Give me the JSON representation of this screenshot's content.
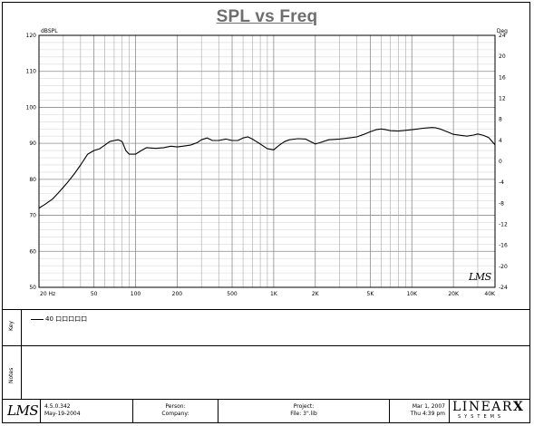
{
  "chart_data": {
    "type": "line",
    "title": "SPL vs Freq",
    "ylabel": "dBSPL",
    "y2label": "Deg",
    "xscale": "log",
    "xlim": [
      20,
      40000
    ],
    "ylim": [
      50,
      120
    ],
    "y2lim": [
      -24,
      24
    ],
    "yticks": [
      50,
      60,
      70,
      80,
      90,
      100,
      110,
      120
    ],
    "y2ticks": [
      -24,
      -20,
      -16,
      -12,
      -8,
      -4,
      0,
      4,
      8,
      12,
      16,
      20,
      24
    ],
    "xticks": [
      {
        "value": 20,
        "label": "20  Hz"
      },
      {
        "value": 50,
        "label": "50"
      },
      {
        "value": 100,
        "label": "100"
      },
      {
        "value": 200,
        "label": "200"
      },
      {
        "value": 500,
        "label": "500"
      },
      {
        "value": 1000,
        "label": "1K"
      },
      {
        "value": 2000,
        "label": "2K"
      },
      {
        "value": 5000,
        "label": "5K"
      },
      {
        "value": 10000,
        "label": "10K"
      },
      {
        "value": 20000,
        "label": "20K"
      },
      {
        "value": 40000,
        "label": "40K"
      }
    ],
    "grid": true,
    "series": [
      {
        "name": "40 口口口口口",
        "color": "#000000",
        "x": [
          20,
          22,
          25,
          28,
          32,
          36,
          40,
          45,
          50,
          55,
          60,
          65,
          70,
          75,
          80,
          85,
          90,
          100,
          110,
          120,
          140,
          160,
          180,
          200,
          220,
          250,
          280,
          300,
          330,
          360,
          400,
          450,
          500,
          550,
          600,
          650,
          700,
          750,
          800,
          900,
          1000,
          1100,
          1200,
          1300,
          1500,
          1700,
          2000,
          2200,
          2500,
          3000,
          3500,
          4000,
          4500,
          5000,
          5500,
          6000,
          6500,
          7000,
          8000,
          9000,
          10000,
          11000,
          12000,
          13000,
          14000,
          15000,
          16000,
          18000,
          20000,
          25000,
          28000,
          30000,
          33000,
          36000,
          40000
        ],
        "y": [
          72.0,
          73.0,
          74.5,
          76.5,
          79.0,
          81.5,
          84.0,
          87.0,
          88.0,
          88.5,
          89.5,
          90.5,
          90.8,
          91.0,
          90.5,
          88.0,
          87.0,
          87.0,
          88.0,
          88.8,
          88.6,
          88.8,
          89.2,
          89.0,
          89.2,
          89.5,
          90.2,
          91.0,
          91.5,
          90.8,
          90.8,
          91.2,
          90.8,
          90.8,
          91.5,
          91.8,
          91.2,
          90.5,
          89.8,
          88.5,
          88.2,
          89.5,
          90.5,
          91.0,
          91.3,
          91.2,
          89.8,
          90.3,
          91.0,
          91.2,
          91.5,
          91.8,
          92.5,
          93.2,
          93.8,
          94.0,
          93.8,
          93.5,
          93.4,
          93.6,
          93.8,
          94.0,
          94.2,
          94.3,
          94.4,
          94.3,
          94.0,
          93.2,
          92.5,
          92.0,
          92.3,
          92.6,
          92.2,
          91.6,
          89.6
        ]
      }
    ],
    "legend": "below-plot"
  },
  "side_labels": {
    "key": "Key",
    "notes": "Notes"
  },
  "footer": {
    "version": "4.5.0.342",
    "version_date": "May-19-2004",
    "person_label": "Person:",
    "company_label": "Company:",
    "project_label": "Project:",
    "file_label": "File: 3\".lib",
    "date": "Mar 1, 2007",
    "time": "Thu  4:39 pm",
    "logo_text": "LMS",
    "brand_word": "LINEAR",
    "brand_mark": "X",
    "brand_sub": "SYSTEMS"
  }
}
